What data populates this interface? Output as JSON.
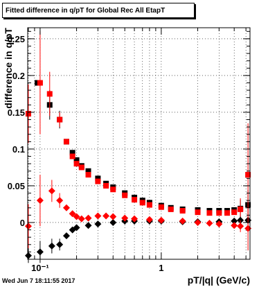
{
  "title": "Fitted difference in q/pT for Global Rec All EtapT",
  "timestamp": "Wed Jun  7 18:11:55 2017",
  "chart_data": {
    "type": "scatter",
    "xlabel": "pT/|q| (GeV/c)",
    "ylabel": "difference in q/pT",
    "xscale": "log",
    "xlim": [
      0.079,
      5.4
    ],
    "ylim": [
      -0.05,
      0.265
    ],
    "grid": true,
    "x_ticks": [
      {
        "v": 0.1,
        "label": "10⁻¹"
      },
      {
        "v": 1,
        "label": "1"
      }
    ],
    "y_ticks": [
      {
        "v": 0,
        "label": "0"
      },
      {
        "v": 0.05,
        "label": "0.05"
      },
      {
        "v": 0.1,
        "label": "0.1"
      },
      {
        "v": 0.15,
        "label": "0.15"
      },
      {
        "v": 0.2,
        "label": "0.2"
      },
      {
        "v": 0.25,
        "label": "0.25"
      }
    ],
    "series": [
      {
        "marker": "square",
        "color": "#000000",
        "points": [
          [
            0.08,
            0.148
          ],
          [
            0.095,
            0.19
          ],
          [
            0.12,
            0.16
          ],
          [
            0.145,
            0.14
          ],
          [
            0.165,
            0.11
          ],
          [
            0.185,
            0.095
          ],
          [
            0.2,
            0.085
          ],
          [
            0.22,
            0.077
          ],
          [
            0.25,
            0.07
          ],
          [
            0.3,
            0.06
          ],
          [
            0.35,
            0.053
          ],
          [
            0.4,
            0.048
          ],
          [
            0.5,
            0.04
          ],
          [
            0.6,
            0.034
          ],
          [
            0.7,
            0.03
          ],
          [
            0.8,
            0.027
          ],
          [
            1.0,
            0.023
          ],
          [
            1.2,
            0.02
          ],
          [
            1.5,
            0.018
          ],
          [
            2.0,
            0.017
          ],
          [
            2.5,
            0.016
          ],
          [
            3.0,
            0.016
          ],
          [
            3.5,
            0.016
          ],
          [
            4.0,
            0.017
          ],
          [
            4.5,
            0.019
          ],
          [
            5.2,
            0.024
          ]
        ],
        "err": [
          0,
          0,
          0.02,
          0.012,
          0,
          0,
          0,
          0,
          0,
          0,
          0,
          0,
          0,
          0,
          0,
          0,
          0,
          0,
          0,
          0,
          0,
          0,
          0,
          0,
          0.012,
          0.02
        ]
      },
      {
        "marker": "square",
        "color": "#ff0000",
        "points": [
          [
            0.08,
            0.148
          ],
          [
            0.1,
            0.19
          ],
          [
            0.12,
            0.175
          ],
          [
            0.145,
            0.14
          ],
          [
            0.165,
            0.11
          ],
          [
            0.185,
            0.09
          ],
          [
            0.2,
            0.08
          ],
          [
            0.22,
            0.075
          ],
          [
            0.25,
            0.065
          ],
          [
            0.3,
            0.056
          ],
          [
            0.35,
            0.05
          ],
          [
            0.4,
            0.045
          ],
          [
            0.5,
            0.037
          ],
          [
            0.6,
            0.031
          ],
          [
            0.7,
            0.027
          ],
          [
            0.8,
            0.024
          ],
          [
            1.0,
            0.021
          ],
          [
            1.2,
            0.018
          ],
          [
            1.5,
            0.016
          ],
          [
            2.0,
            0.014
          ],
          [
            2.5,
            0.013
          ],
          [
            3.0,
            0.013
          ],
          [
            3.5,
            0.013
          ],
          [
            4.0,
            0.014
          ],
          [
            4.5,
            0.018
          ],
          [
            5.2,
            0.065
          ]
        ],
        "err": [
          0.04,
          0.07,
          0.03,
          0.01,
          0,
          0,
          0,
          0,
          0,
          0,
          0,
          0,
          0,
          0,
          0,
          0,
          0,
          0,
          0,
          0,
          0,
          0,
          0,
          0,
          0.015,
          0.07
        ]
      },
      {
        "marker": "diamond",
        "color": "#000000",
        "points": [
          [
            0.08,
            -0.045
          ],
          [
            0.1,
            -0.04
          ],
          [
            0.125,
            -0.032
          ],
          [
            0.145,
            -0.03
          ],
          [
            0.165,
            -0.018
          ],
          [
            0.185,
            -0.01
          ],
          [
            0.2,
            -0.007
          ],
          [
            0.25,
            -0.004
          ],
          [
            0.3,
            -0.002
          ],
          [
            0.4,
            0.0
          ],
          [
            0.5,
            0.002
          ],
          [
            0.6,
            0.002
          ],
          [
            0.8,
            0.002
          ],
          [
            1.0,
            0.002
          ],
          [
            1.5,
            0.001
          ],
          [
            2.0,
            0.001
          ],
          [
            3.0,
            0.001
          ],
          [
            4.0,
            0.002
          ],
          [
            4.5,
            0.003
          ],
          [
            5.2,
            0.003
          ]
        ],
        "err": [
          0.01,
          0.015,
          0.01,
          0.008,
          0,
          0,
          0,
          0,
          0,
          0,
          0,
          0,
          0,
          0,
          0,
          0,
          0,
          0,
          0.005,
          0.005
        ]
      },
      {
        "marker": "diamond",
        "color": "#ff0000",
        "points": [
          [
            0.08,
            -0.005
          ],
          [
            0.1,
            0.03
          ],
          [
            0.125,
            0.043
          ],
          [
            0.145,
            0.03
          ],
          [
            0.165,
            0.02
          ],
          [
            0.185,
            0.012
          ],
          [
            0.2,
            0.008
          ],
          [
            0.22,
            0.005
          ],
          [
            0.25,
            0.006
          ],
          [
            0.3,
            0.009
          ],
          [
            0.35,
            0.009
          ],
          [
            0.4,
            0.008
          ],
          [
            0.5,
            0.006
          ],
          [
            0.6,
            0.005
          ],
          [
            0.8,
            0.004
          ],
          [
            1.0,
            0.003
          ],
          [
            1.5,
            0.002
          ],
          [
            2.0,
            0.0
          ],
          [
            2.5,
            -0.001
          ],
          [
            3.0,
            -0.002
          ],
          [
            4.0,
            -0.004
          ],
          [
            4.5,
            -0.005
          ],
          [
            5.2,
            -0.008
          ]
        ],
        "err": [
          0.03,
          0.035,
          0.015,
          0.01,
          0,
          0,
          0,
          0,
          0,
          0,
          0,
          0,
          0,
          0,
          0,
          0,
          0,
          0,
          0,
          0,
          0,
          0.008,
          0.03
        ]
      }
    ]
  }
}
